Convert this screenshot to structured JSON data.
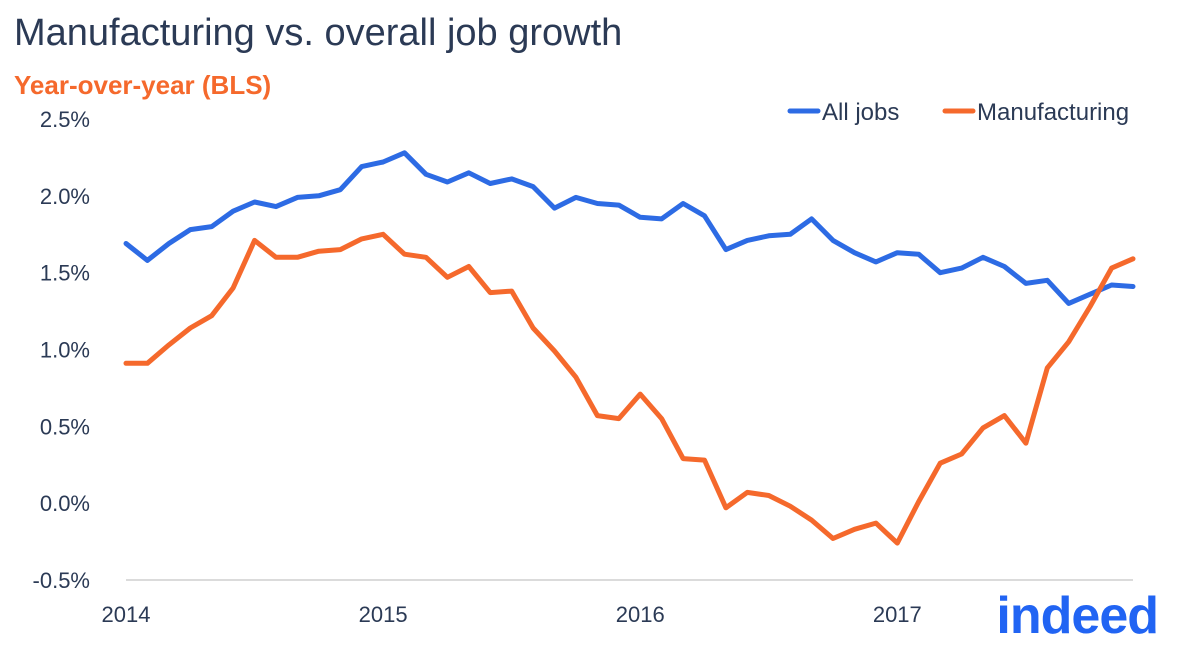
{
  "chart_data": {
    "type": "line",
    "title": "Manufacturing vs. overall job growth",
    "subtitle": "Year-over-year (BLS)",
    "x_ticks": [
      "2014",
      "2015",
      "2016",
      "2017"
    ],
    "y_ticks": [
      "2.5%",
      "2.0%",
      "1.5%",
      "1.0%",
      "0.5%",
      "0.0%",
      "-0.5%"
    ],
    "ylim": [
      -0.5,
      2.5
    ],
    "legend_position": "top-right",
    "grid": false,
    "series": [
      {
        "name": "All jobs",
        "color": "#2d6be4",
        "values": [
          1.69,
          1.58,
          1.69,
          1.78,
          1.8,
          1.9,
          1.96,
          1.93,
          1.99,
          2.0,
          2.04,
          2.19,
          2.22,
          2.28,
          2.14,
          2.09,
          2.15,
          2.08,
          2.11,
          2.06,
          1.92,
          1.99,
          1.95,
          1.94,
          1.86,
          1.85,
          1.95,
          1.87,
          1.65,
          1.71,
          1.74,
          1.75,
          1.85,
          1.71,
          1.63,
          1.57,
          1.63,
          1.62,
          1.5,
          1.53,
          1.6,
          1.54,
          1.43,
          1.45,
          1.3,
          1.36,
          1.42,
          1.41
        ]
      },
      {
        "name": "Manufacturing",
        "color": "#f5692c",
        "values": [
          0.91,
          0.91,
          1.03,
          1.14,
          1.22,
          1.4,
          1.71,
          1.6,
          1.6,
          1.64,
          1.65,
          1.72,
          1.75,
          1.62,
          1.6,
          1.47,
          1.54,
          1.37,
          1.38,
          1.14,
          0.99,
          0.82,
          0.57,
          0.55,
          0.71,
          0.55,
          0.29,
          0.28,
          -0.03,
          0.07,
          0.05,
          -0.02,
          -0.11,
          -0.23,
          -0.17,
          -0.13,
          -0.26,
          0.01,
          0.26,
          0.32,
          0.49,
          0.57,
          0.39,
          0.88,
          1.05,
          1.28,
          1.53,
          1.59
        ]
      }
    ]
  },
  "logo": {
    "text": "indeed",
    "color": "#2164f3"
  }
}
